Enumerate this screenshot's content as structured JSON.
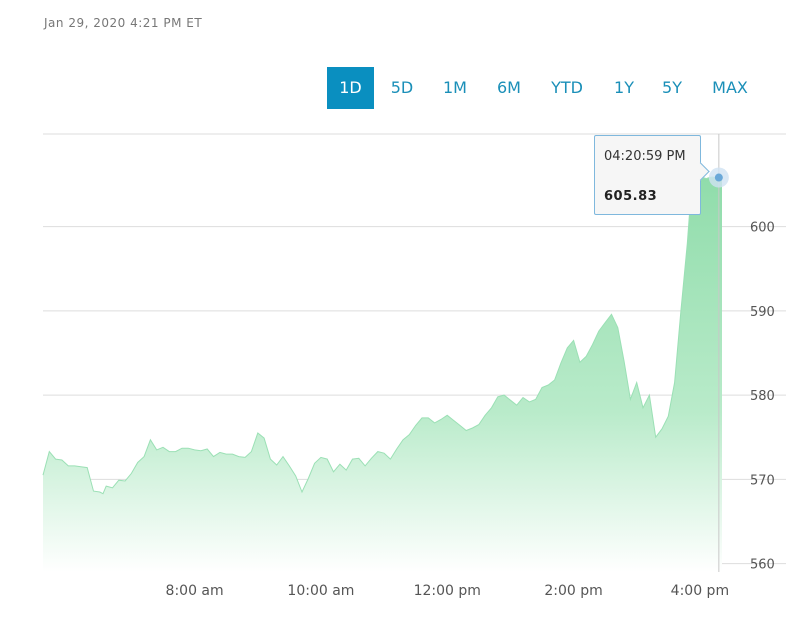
{
  "header": {
    "timestamp": "Jan 29, 2020 4:21 PM ET"
  },
  "ranges": [
    {
      "label": "1D",
      "active": true
    },
    {
      "label": "5D",
      "active": false
    },
    {
      "label": "1M",
      "active": false
    },
    {
      "label": "6M",
      "active": false
    },
    {
      "label": "YTD",
      "active": false
    },
    {
      "label": "1Y",
      "active": false
    },
    {
      "label": "5Y",
      "active": false
    },
    {
      "label": "MAX",
      "active": false
    }
  ],
  "tooltip": {
    "time": "04:20:59 PM",
    "price": "605.83"
  },
  "chart_data": {
    "type": "area",
    "x_ticks": [
      {
        "label": "8:00 am",
        "hour": 8
      },
      {
        "label": "10:00 am",
        "hour": 10
      },
      {
        "label": "12:00 pm",
        "hour": 12
      },
      {
        "label": "2:00 pm",
        "hour": 14
      },
      {
        "label": "4:00 pm",
        "hour": 16
      }
    ],
    "y_ticks": [
      560,
      570,
      580,
      590,
      600
    ],
    "ylim": [
      559,
      611
    ],
    "xlim_hours": [
      5.6,
      16.35
    ],
    "grid": true,
    "colors": {
      "fill_top": "#8fdcaa",
      "fill_bottom": "#ffffff",
      "line": "#9be0b5",
      "grid": "#dddddd",
      "marker": "#6aa8d8"
    },
    "series": [
      {
        "x_hours": [
          5.6,
          5.7,
          5.8,
          5.9,
          6.0,
          6.1,
          6.2,
          6.3,
          6.4,
          6.5,
          6.55,
          6.6,
          6.7,
          6.8,
          6.9,
          7.0,
          7.1,
          7.2,
          7.3,
          7.4,
          7.5,
          7.6,
          7.7,
          7.8,
          7.9,
          8.0,
          8.1,
          8.2,
          8.3,
          8.4,
          8.5,
          8.6,
          8.7,
          8.8,
          8.9,
          9.0,
          9.1,
          9.2,
          9.3,
          9.4,
          9.5,
          9.6,
          9.7,
          9.8,
          9.9,
          10.0,
          10.1,
          10.2,
          10.3,
          10.4,
          10.5,
          10.6,
          10.7,
          10.8,
          10.9,
          11.0,
          11.1,
          11.2,
          11.3,
          11.4,
          11.5,
          11.6,
          11.7,
          11.8,
          11.9,
          12.0,
          12.1,
          12.2,
          12.3,
          12.4,
          12.5,
          12.6,
          12.7,
          12.8,
          12.9,
          13.0,
          13.1,
          13.2,
          13.3,
          13.4,
          13.5,
          13.6,
          13.7,
          13.8,
          13.9,
          14.0,
          14.1,
          14.2,
          14.3,
          14.4,
          14.5,
          14.6,
          14.7,
          14.8,
          14.9,
          15.0,
          15.1,
          15.2,
          15.3,
          15.4,
          15.5,
          15.6,
          15.7,
          15.8,
          15.85,
          15.9,
          15.95,
          16.0,
          16.05,
          16.1,
          16.15,
          16.2,
          16.25,
          16.3,
          16.35
        ],
        "y": [
          570.5,
          573.3,
          572.4,
          572.3,
          571.6,
          571.6,
          571.5,
          571.4,
          568.6,
          568.5,
          568.3,
          569.2,
          569.0,
          569.9,
          569.8,
          570.7,
          572.0,
          572.7,
          574.7,
          573.5,
          573.8,
          573.3,
          573.3,
          573.7,
          573.7,
          573.5,
          573.4,
          573.6,
          572.7,
          573.2,
          573.0,
          573.0,
          572.7,
          572.6,
          573.3,
          575.5,
          574.9,
          572.4,
          571.7,
          572.7,
          571.6,
          570.4,
          568.5,
          570.1,
          571.9,
          572.6,
          572.4,
          570.9,
          571.8,
          571.1,
          572.4,
          572.5,
          571.6,
          572.5,
          573.3,
          573.1,
          572.4,
          573.6,
          574.7,
          575.3,
          576.4,
          577.3,
          577.3,
          576.7,
          577.1,
          577.6,
          577.0,
          576.4,
          575.8,
          576.1,
          576.5,
          577.6,
          578.5,
          579.8,
          580.0,
          579.4,
          578.8,
          579.7,
          579.2,
          579.5,
          580.9,
          581.2,
          581.8,
          583.8,
          585.6,
          586.5,
          583.9,
          584.6,
          586.0,
          587.6,
          588.6,
          589.6,
          588.0,
          584.0,
          579.5,
          581.5,
          578.5,
          580.0,
          575.0,
          576.0,
          577.5,
          581.5,
          590.0,
          598.0,
          603.0,
          605.83,
          606.5,
          606.0,
          605.83,
          605.7,
          605.83,
          605.9,
          605.83,
          605.85,
          605.83
        ]
      }
    ],
    "marker": {
      "x_hours": 16.3,
      "y": 605.83
    }
  }
}
